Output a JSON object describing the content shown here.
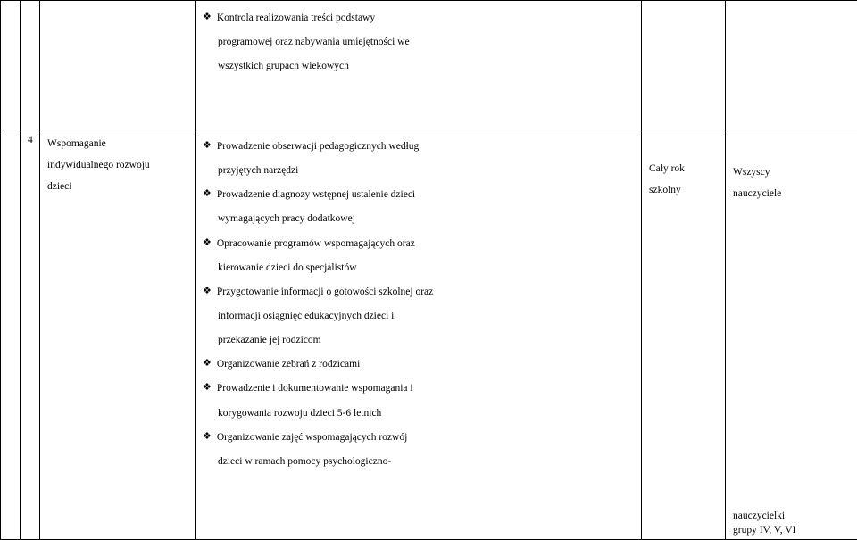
{
  "topRow": {
    "items": [
      {
        "text": "Kontrola realizowania treści podstawy",
        "cont": [
          "programowej oraz nabywania umiejętności we",
          "wszystkich grupach wiekowych"
        ]
      }
    ]
  },
  "bottomRow": {
    "num": "4",
    "col3": [
      "Wspomaganie",
      "indywidualnego rozwoju",
      "dzieci"
    ],
    "items": [
      {
        "text": "Prowadzenie obserwacji pedagogicznych według",
        "cont": [
          "przyjętych narzędzi"
        ]
      },
      {
        "text": "Prowadzenie diagnozy wstępnej ustalenie dzieci",
        "cont": [
          "wymagających pracy dodatkowej"
        ]
      },
      {
        "text": "Opracowanie programów wspomagających oraz",
        "cont": [
          "kierowanie dzieci do specjalistów"
        ]
      },
      {
        "text": "Przygotowanie informacji o gotowości szkolnej oraz",
        "cont": [
          "informacji osiągnięć edukacyjnych dzieci i",
          "przekazanie jej rodzicom"
        ]
      },
      {
        "text": "Organizowanie zebrań z rodzicami",
        "cont": []
      },
      {
        "text": "Prowadzenie i dokumentowanie wspomagania i",
        "cont": [
          "korygowania rozwoju dzieci 5-6 letnich"
        ]
      },
      {
        "text": "Organizowanie zajęć wspomagających rozwój",
        "cont": [
          "dzieci w ramach pomocy psychologiczno-"
        ]
      }
    ],
    "col5": [
      "Cały rok",
      "szkolny"
    ],
    "col6_top": [
      "Wszyscy",
      "nauczyciele"
    ],
    "col6_bottom": [
      "nauczycielki",
      "grupy IV, V, VI"
    ]
  },
  "marker": "❖"
}
